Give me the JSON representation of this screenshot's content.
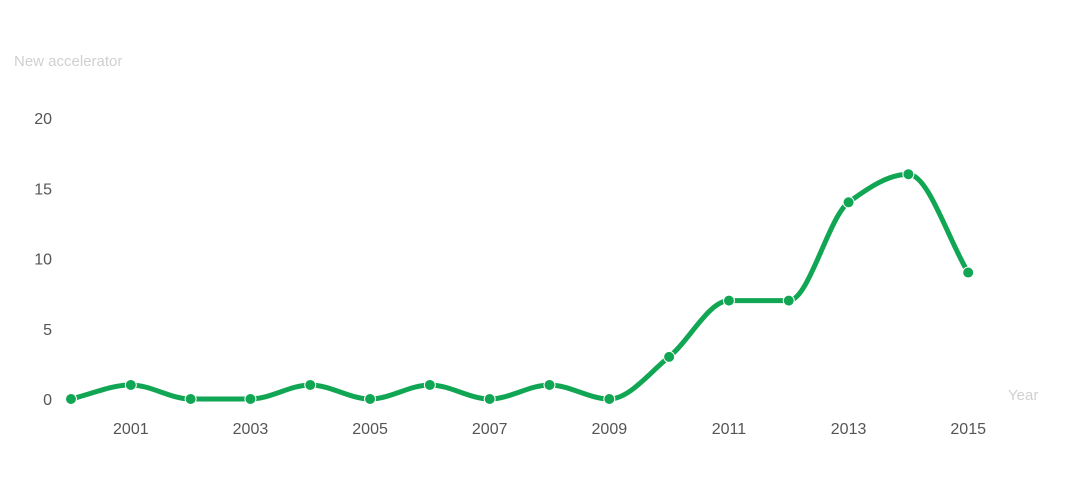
{
  "chart_data": {
    "type": "line",
    "title": "",
    "ylabel": "New accelerator",
    "xlabel": "Year",
    "x": [
      2000,
      2001,
      2002,
      2003,
      2004,
      2005,
      2006,
      2007,
      2008,
      2009,
      2010,
      2011,
      2012,
      2013,
      2014,
      2015
    ],
    "series": [
      {
        "values": [
          0,
          1,
          0,
          0,
          1,
          0,
          1,
          0,
          1,
          0,
          3,
          7,
          7,
          14,
          16,
          9
        ]
      }
    ],
    "x_tick_labels": [
      "2001",
      "2003",
      "2005",
      "2007",
      "2009",
      "2011",
      "2013",
      "2015"
    ],
    "x_ticks": [
      2001,
      2003,
      2005,
      2007,
      2009,
      2011,
      2013,
      2015
    ],
    "y_tick_labels": [
      "0",
      "5",
      "10",
      "15",
      "20"
    ],
    "y_ticks": [
      0,
      5,
      10,
      15,
      20
    ],
    "xlim": [
      2000,
      2016
    ],
    "ylim": [
      0,
      20
    ],
    "grid": false,
    "line_color": "#10a653"
  }
}
